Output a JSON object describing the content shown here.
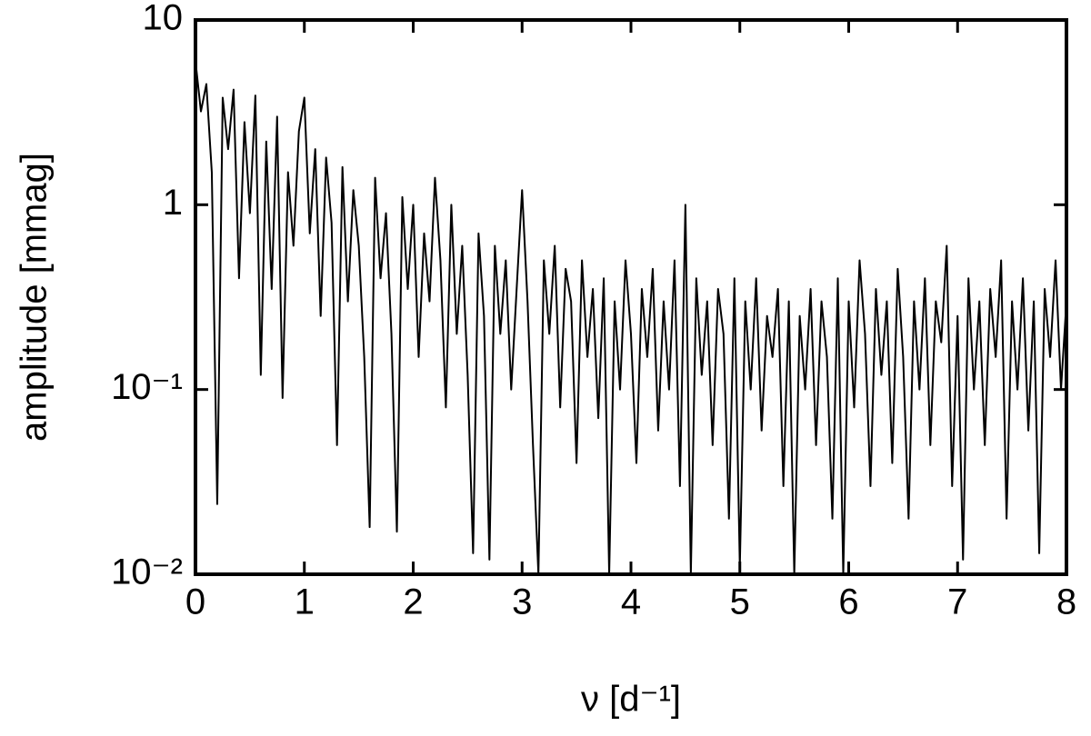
{
  "chart_data": {
    "type": "line",
    "xlabel": "ν [d⁻¹]",
    "ylabel": "amplitude [mmag]",
    "xlim": [
      0,
      8
    ],
    "xticks": [
      0,
      1,
      2,
      3,
      4,
      5,
      6,
      7,
      8
    ],
    "ylim": [
      0.01,
      10
    ],
    "ylog": true,
    "yticks": [
      {
        "value": 0.01,
        "label": "10⁻²"
      },
      {
        "value": 0.1,
        "label": "10⁻¹"
      },
      1,
      10
    ],
    "color": "#000000",
    "x": [
      0,
      0.05,
      0.1,
      0.15,
      0.2,
      0.25,
      0.3,
      0.35,
      0.4,
      0.45,
      0.5,
      0.55,
      0.6,
      0.65,
      0.7,
      0.75,
      0.8,
      0.85,
      0.9,
      0.95,
      1,
      1.05,
      1.1,
      1.15,
      1.2,
      1.25,
      1.3,
      1.35,
      1.4,
      1.45,
      1.5,
      1.55,
      1.6,
      1.65,
      1.7,
      1.75,
      1.8,
      1.85,
      1.9,
      1.95,
      2,
      2.05,
      2.1,
      2.15,
      2.2,
      2.25,
      2.3,
      2.35,
      2.4,
      2.45,
      2.5,
      2.55,
      2.6,
      2.65,
      2.7,
      2.75,
      2.8,
      2.85,
      2.9,
      2.95,
      3,
      3.05,
      3.1,
      3.15,
      3.2,
      3.25,
      3.3,
      3.35,
      3.4,
      3.45,
      3.5,
      3.55,
      3.6,
      3.65,
      3.7,
      3.75,
      3.8,
      3.85,
      3.9,
      3.95,
      4,
      4.05,
      4.1,
      4.15,
      4.2,
      4.25,
      4.3,
      4.35,
      4.4,
      4.45,
      4.5,
      4.55,
      4.6,
      4.65,
      4.7,
      4.75,
      4.8,
      4.85,
      4.9,
      4.95,
      5,
      5.05,
      5.1,
      5.15,
      5.2,
      5.25,
      5.3,
      5.35,
      5.4,
      5.45,
      5.5,
      5.55,
      5.6,
      5.65,
      5.7,
      5.75,
      5.8,
      5.85,
      5.9,
      5.95,
      6,
      6.05,
      6.1,
      6.15,
      6.2,
      6.25,
      6.3,
      6.35,
      6.4,
      6.45,
      6.5,
      6.55,
      6.6,
      6.65,
      6.7,
      6.75,
      6.8,
      6.85,
      6.9,
      6.95,
      7,
      7.05,
      7.1,
      7.15,
      7.2,
      7.25,
      7.3,
      7.35,
      7.4,
      7.45,
      7.5,
      7.55,
      7.6,
      7.65,
      7.7,
      7.75,
      7.8,
      7.85,
      7.9,
      7.95,
      8
    ],
    "values": [
      6.0,
      3.2,
      4.5,
      1.5,
      0.024,
      3.8,
      2.0,
      4.2,
      0.4,
      2.8,
      0.9,
      3.9,
      0.12,
      2.2,
      0.35,
      3.0,
      0.09,
      1.5,
      0.6,
      2.5,
      3.8,
      0.7,
      2.0,
      0.25,
      1.8,
      0.8,
      0.05,
      1.6,
      0.3,
      1.2,
      0.6,
      0.15,
      0.018,
      1.4,
      0.4,
      0.9,
      0.2,
      0.017,
      1.1,
      0.35,
      1.0,
      0.15,
      0.7,
      0.3,
      1.4,
      0.5,
      0.08,
      1.0,
      0.2,
      0.6,
      0.12,
      0.013,
      0.7,
      0.25,
      0.012,
      0.6,
      0.2,
      0.5,
      0.1,
      0.35,
      1.2,
      0.3,
      0.05,
      0.01,
      0.5,
      0.2,
      0.6,
      0.08,
      0.45,
      0.3,
      0.04,
      0.5,
      0.15,
      0.35,
      0.07,
      0.4,
      0.01,
      0.3,
      0.1,
      0.5,
      0.2,
      0.04,
      0.35,
      0.15,
      0.45,
      0.06,
      0.3,
      0.1,
      0.5,
      0.03,
      1.0,
      0.01,
      0.4,
      0.12,
      0.3,
      0.05,
      0.35,
      0.2,
      0.02,
      0.4,
      0.011,
      0.3,
      0.1,
      0.4,
      0.06,
      0.25,
      0.15,
      0.35,
      0.03,
      0.3,
      0.01,
      0.25,
      0.1,
      0.35,
      0.05,
      0.3,
      0.15,
      0.02,
      0.4,
      0.01,
      0.3,
      0.08,
      0.5,
      0.2,
      0.03,
      0.35,
      0.12,
      0.3,
      0.04,
      0.45,
      0.15,
      0.02,
      0.3,
      0.1,
      0.4,
      0.05,
      0.3,
      0.18,
      0.6,
      0.03,
      0.25,
      0.012,
      0.4,
      0.1,
      0.3,
      0.05,
      0.35,
      0.15,
      0.5,
      0.02,
      0.3,
      0.1,
      0.4,
      0.06,
      0.3,
      0.013,
      0.35,
      0.15,
      0.5,
      0.1,
      0.3
    ]
  }
}
